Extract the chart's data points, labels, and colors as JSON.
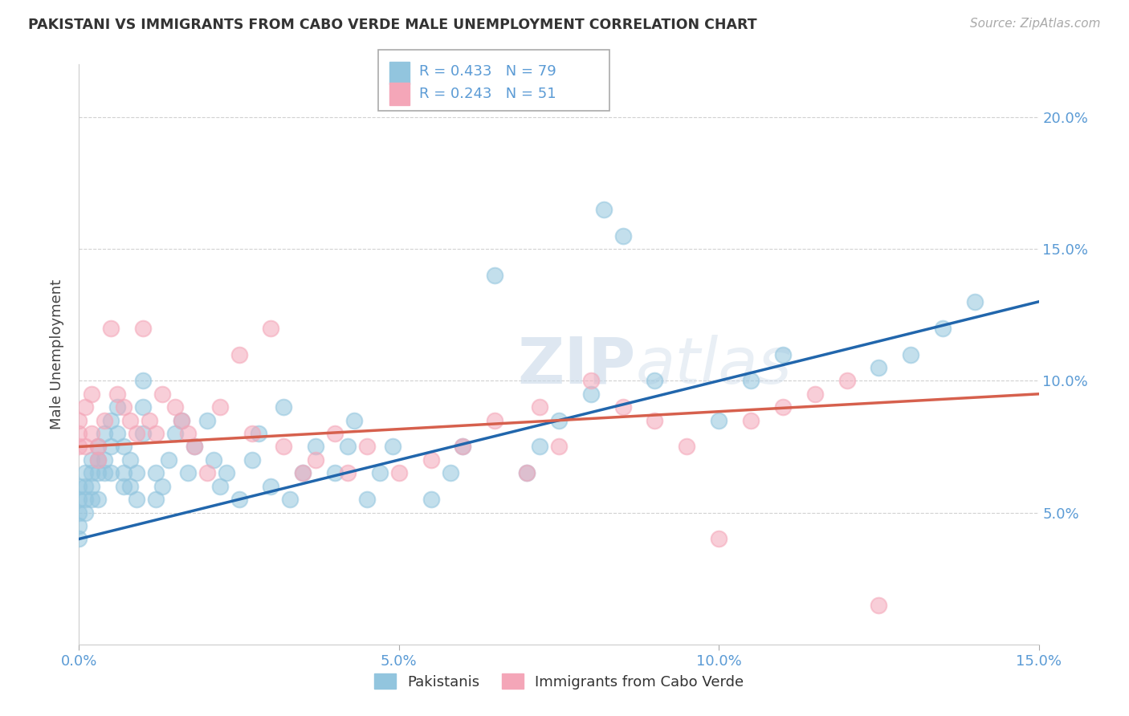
{
  "title": "PAKISTANI VS IMMIGRANTS FROM CABO VERDE MALE UNEMPLOYMENT CORRELATION CHART",
  "source": "Source: ZipAtlas.com",
  "ylabel": "Male Unemployment",
  "legend_label1": "Pakistanis",
  "legend_label2": "Immigrants from Cabo Verde",
  "r1": 0.433,
  "n1": 79,
  "r2": 0.243,
  "n2": 51,
  "blue_color": "#92c5de",
  "pink_color": "#f4a6b8",
  "blue_line_color": "#2166ac",
  "pink_line_color": "#d6604d",
  "axis_label_color": "#5b9bd5",
  "watermark_color": "#d0dce8",
  "xmin": 0.0,
  "xmax": 0.15,
  "ymin": 0.0,
  "ymax": 0.22,
  "yticks": [
    0.05,
    0.1,
    0.15,
    0.2
  ],
  "xticks": [
    0.0,
    0.05,
    0.1,
    0.15
  ],
  "blue_trend_x0": 0.0,
  "blue_trend_y0": 0.04,
  "blue_trend_x1": 0.15,
  "blue_trend_y1": 0.13,
  "pink_trend_x0": 0.0,
  "pink_trend_y0": 0.075,
  "pink_trend_x1": 0.15,
  "pink_trend_y1": 0.095,
  "blue_x": [
    0.0,
    0.0,
    0.0,
    0.0,
    0.0,
    0.001,
    0.001,
    0.001,
    0.001,
    0.002,
    0.002,
    0.002,
    0.002,
    0.003,
    0.003,
    0.003,
    0.003,
    0.004,
    0.004,
    0.004,
    0.005,
    0.005,
    0.005,
    0.006,
    0.006,
    0.007,
    0.007,
    0.007,
    0.008,
    0.008,
    0.009,
    0.009,
    0.01,
    0.01,
    0.01,
    0.012,
    0.012,
    0.013,
    0.014,
    0.015,
    0.016,
    0.017,
    0.018,
    0.02,
    0.021,
    0.022,
    0.023,
    0.025,
    0.027,
    0.028,
    0.03,
    0.032,
    0.033,
    0.035,
    0.037,
    0.04,
    0.042,
    0.043,
    0.045,
    0.047,
    0.049,
    0.055,
    0.058,
    0.06,
    0.065,
    0.07,
    0.072,
    0.075,
    0.08,
    0.082,
    0.085,
    0.09,
    0.1,
    0.105,
    0.11,
    0.125,
    0.13,
    0.135,
    0.14
  ],
  "blue_y": [
    0.055,
    0.06,
    0.05,
    0.045,
    0.04,
    0.065,
    0.06,
    0.055,
    0.05,
    0.07,
    0.065,
    0.06,
    0.055,
    0.075,
    0.07,
    0.065,
    0.055,
    0.08,
    0.07,
    0.065,
    0.085,
    0.075,
    0.065,
    0.09,
    0.08,
    0.075,
    0.065,
    0.06,
    0.07,
    0.06,
    0.065,
    0.055,
    0.1,
    0.09,
    0.08,
    0.055,
    0.065,
    0.06,
    0.07,
    0.08,
    0.085,
    0.065,
    0.075,
    0.085,
    0.07,
    0.06,
    0.065,
    0.055,
    0.07,
    0.08,
    0.06,
    0.09,
    0.055,
    0.065,
    0.075,
    0.065,
    0.075,
    0.085,
    0.055,
    0.065,
    0.075,
    0.055,
    0.065,
    0.075,
    0.14,
    0.065,
    0.075,
    0.085,
    0.095,
    0.165,
    0.155,
    0.1,
    0.085,
    0.1,
    0.11,
    0.105,
    0.11,
    0.12,
    0.13
  ],
  "pink_x": [
    0.0,
    0.0,
    0.0,
    0.001,
    0.001,
    0.002,
    0.002,
    0.003,
    0.003,
    0.004,
    0.005,
    0.006,
    0.007,
    0.008,
    0.009,
    0.01,
    0.011,
    0.012,
    0.013,
    0.015,
    0.016,
    0.017,
    0.018,
    0.02,
    0.022,
    0.025,
    0.027,
    0.03,
    0.032,
    0.035,
    0.037,
    0.04,
    0.042,
    0.045,
    0.05,
    0.055,
    0.06,
    0.065,
    0.07,
    0.072,
    0.075,
    0.08,
    0.085,
    0.09,
    0.095,
    0.1,
    0.105,
    0.11,
    0.115,
    0.12,
    0.125
  ],
  "pink_y": [
    0.075,
    0.08,
    0.085,
    0.09,
    0.075,
    0.095,
    0.08,
    0.07,
    0.075,
    0.085,
    0.12,
    0.095,
    0.09,
    0.085,
    0.08,
    0.12,
    0.085,
    0.08,
    0.095,
    0.09,
    0.085,
    0.08,
    0.075,
    0.065,
    0.09,
    0.11,
    0.08,
    0.12,
    0.075,
    0.065,
    0.07,
    0.08,
    0.065,
    0.075,
    0.065,
    0.07,
    0.075,
    0.085,
    0.065,
    0.09,
    0.075,
    0.1,
    0.09,
    0.085,
    0.075,
    0.04,
    0.085,
    0.09,
    0.095,
    0.1,
    0.015
  ]
}
